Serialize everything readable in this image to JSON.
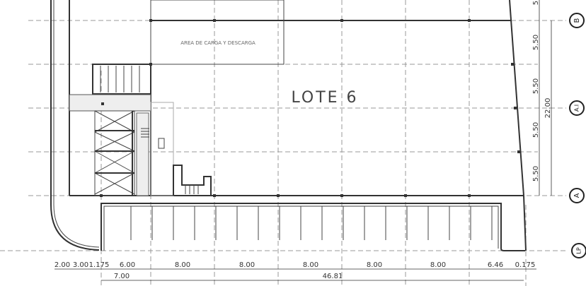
{
  "plan": {
    "lot_label": "LOTE 6",
    "area_label": "AREA DE CARGA Y DESCARGA",
    "grid_axes": [
      "B",
      "A.I",
      "A",
      "LP"
    ],
    "bottom_dimensions_row1": [
      "2.00",
      "3.00",
      "1.175",
      "6.00",
      "8.00",
      "8.00",
      "8.00",
      "8.00",
      "8.00",
      "6.46",
      "0.175"
    ],
    "bottom_dimensions_row2": [
      "7.00",
      "46.81"
    ],
    "right_dimensions": [
      "5.50",
      "5.50",
      "5.50",
      "5.50"
    ],
    "right_total": "22.00",
    "right_partial_top": "5"
  }
}
